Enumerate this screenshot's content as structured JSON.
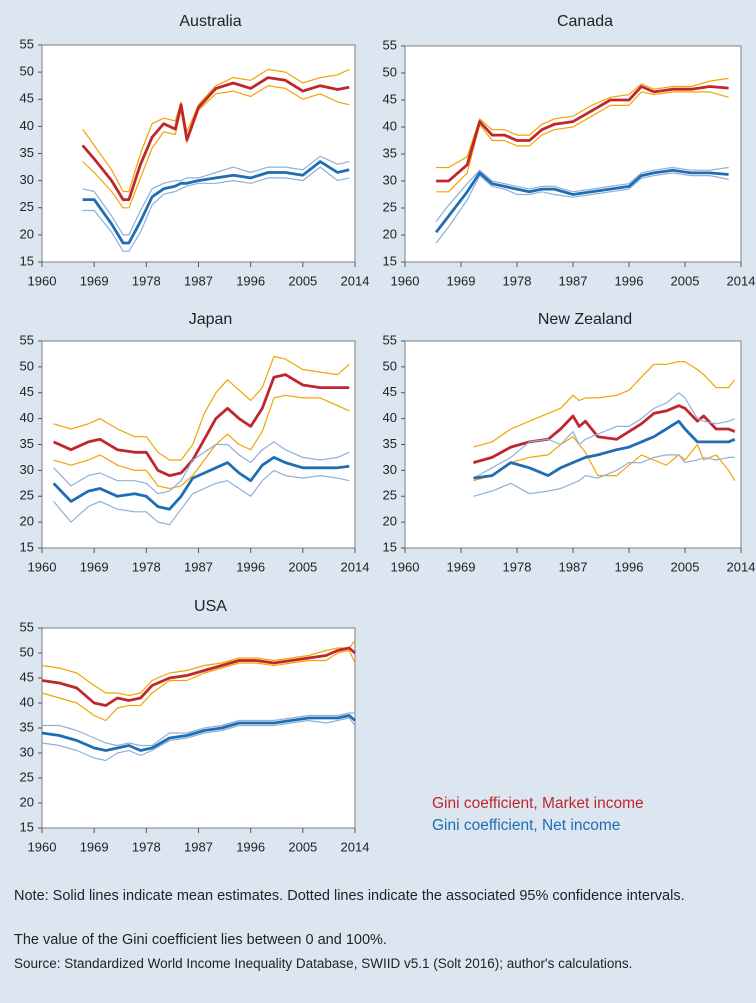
{
  "chart_data": [
    {
      "type": "line",
      "title": "Australia",
      "x": [
        1967,
        1969,
        1972,
        1974,
        1975,
        1977,
        1979,
        1981,
        1983,
        1984,
        1985,
        1987,
        1990,
        1993,
        1996,
        1999,
        2002,
        2005,
        2008,
        2011,
        2013
      ],
      "series": [
        {
          "color": "#f0a500",
          "width": 1.2,
          "values": [
            39.5,
            36.5,
            32,
            28,
            28,
            35,
            40.5,
            41.5,
            41,
            44.5,
            39,
            44,
            47.5,
            49,
            48.5,
            50.5,
            50,
            48,
            49,
            49.5,
            50.5
          ]
        },
        {
          "color": "#f0a500",
          "width": 1.2,
          "values": [
            33.5,
            31.5,
            28,
            25,
            25,
            30.5,
            36,
            39,
            38.5,
            43,
            37,
            43,
            46,
            46.5,
            45.5,
            47.5,
            47,
            45,
            46,
            44.5,
            44
          ]
        },
        {
          "color": "#c0262d",
          "width": 2.8,
          "values": [
            36.5,
            34,
            30,
            26.5,
            26.5,
            33,
            38,
            40.5,
            39.5,
            44,
            37.5,
            43.5,
            47,
            48,
            47,
            49,
            48.5,
            46.5,
            47.5,
            46.8,
            47.2
          ]
        },
        {
          "color": "#8fb0d8",
          "width": 1.2,
          "values": [
            28.5,
            28,
            23.5,
            20,
            20,
            24.5,
            28.5,
            29.5,
            30,
            30,
            30.5,
            30.5,
            31.5,
            32.5,
            31.5,
            32.5,
            32.5,
            32,
            34.5,
            33,
            33.5
          ]
        },
        {
          "color": "#8fb0d8",
          "width": 1.2,
          "values": [
            24.5,
            24.5,
            20.5,
            17,
            17,
            20.5,
            25.5,
            27.5,
            28,
            28.5,
            29,
            29.5,
            29.5,
            30,
            29.5,
            30.5,
            30.5,
            30,
            32.5,
            30,
            30.5
          ]
        },
        {
          "color": "#1f6db3",
          "width": 2.8,
          "values": [
            26.5,
            26.5,
            22,
            18.5,
            18.5,
            22.5,
            27,
            28.5,
            29,
            29.5,
            29.5,
            30,
            30.5,
            31,
            30.5,
            31.5,
            31.5,
            31,
            33.5,
            31.5,
            32
          ]
        }
      ],
      "xlim": [
        1960,
        2014
      ],
      "xticks": [
        1960,
        1969,
        1978,
        1987,
        1996,
        2005,
        2014
      ],
      "ylim": [
        15,
        55
      ],
      "yticks": [
        15,
        20,
        25,
        30,
        35,
        40,
        45,
        50,
        55
      ]
    },
    {
      "type": "line",
      "title": "Canada",
      "x": [
        1965,
        1967,
        1970,
        1972,
        1974,
        1976,
        1978,
        1980,
        1982,
        1984,
        1987,
        1990,
        1993,
        1996,
        1998,
        2000,
        2003,
        2006,
        2009,
        2012
      ],
      "series": [
        {
          "color": "#f0a500",
          "width": 1.2,
          "values": [
            32.5,
            32.5,
            34.5,
            41.5,
            39.5,
            39.5,
            38.5,
            38.5,
            40.5,
            41.5,
            42,
            44,
            45.5,
            46,
            48,
            47,
            47.5,
            47.5,
            48.5,
            49
          ]
        },
        {
          "color": "#f0a500",
          "width": 1.2,
          "values": [
            28,
            28,
            31.5,
            40.5,
            37.5,
            37.5,
            36.5,
            36.5,
            38.5,
            39.5,
            40,
            42,
            44,
            44,
            46.5,
            46,
            46.5,
            46.5,
            46.5,
            45.5
          ]
        },
        {
          "color": "#c0262d",
          "width": 2.8,
          "values": [
            30,
            30,
            33,
            41,
            38.5,
            38.5,
            37.5,
            37.5,
            39.5,
            40.5,
            41,
            43,
            45,
            45,
            47.5,
            46.5,
            47,
            47,
            47.5,
            47.2
          ]
        },
        {
          "color": "#8fb0d8",
          "width": 1.2,
          "values": [
            22.5,
            25.5,
            29.5,
            32,
            30,
            29.5,
            29,
            28.5,
            29,
            29,
            28,
            28.5,
            29,
            29.5,
            31.5,
            32,
            32.5,
            32,
            32,
            32.5
          ]
        },
        {
          "color": "#8fb0d8",
          "width": 1.2,
          "values": [
            18.5,
            21.5,
            26.5,
            31,
            29,
            28.5,
            27.5,
            27.5,
            28,
            27.5,
            27,
            27.5,
            28,
            28.5,
            30.5,
            31,
            31.5,
            31,
            31,
            30.3
          ]
        },
        {
          "color": "#1f6db3",
          "width": 2.8,
          "values": [
            20.5,
            23.5,
            28,
            31.5,
            29.5,
            29,
            28.5,
            28,
            28.5,
            28.5,
            27.5,
            28,
            28.5,
            29,
            31,
            31.5,
            32,
            31.5,
            31.5,
            31.2
          ]
        }
      ],
      "xlim": [
        1960,
        2014
      ],
      "xticks": [
        1960,
        1969,
        1978,
        1987,
        1996,
        2005,
        2014
      ],
      "ylim": [
        15,
        55
      ],
      "yticks": [
        15,
        20,
        25,
        30,
        35,
        40,
        45,
        50,
        55
      ]
    },
    {
      "type": "line",
      "title": "Japan",
      "x": [
        1962,
        1965,
        1968,
        1970,
        1973,
        1976,
        1978,
        1980,
        1982,
        1984,
        1986,
        1988,
        1990,
        1992,
        1994,
        1996,
        1998,
        2000,
        2002,
        2005,
        2008,
        2011,
        2013
      ],
      "series": [
        {
          "color": "#f0a500",
          "width": 1.2,
          "values": [
            39,
            38,
            39,
            40,
            38,
            36.5,
            36.5,
            33.5,
            32,
            32,
            35,
            41,
            45,
            47.5,
            45.5,
            43.5,
            46,
            52,
            51.5,
            49.5,
            49,
            48.5,
            50.5
          ]
        },
        {
          "color": "#f0a500",
          "width": 1.2,
          "values": [
            32,
            31,
            32,
            33,
            31,
            30,
            30,
            27,
            26.5,
            27,
            29,
            32,
            35,
            37,
            35,
            34,
            37.5,
            44,
            44.5,
            44,
            44,
            42.5,
            41.5
          ]
        },
        {
          "color": "#c0262d",
          "width": 2.8,
          "values": [
            35.5,
            34,
            35.5,
            36,
            34,
            33.5,
            33.5,
            30,
            29,
            29.5,
            32,
            36,
            40,
            42,
            40,
            38.5,
            42,
            48,
            48.5,
            46.5,
            46,
            46,
            46
          ]
        },
        {
          "color": "#8fb0d8",
          "width": 1.2,
          "values": [
            30.5,
            27,
            29,
            29.5,
            28,
            28,
            27.5,
            25.5,
            26,
            28,
            32,
            33.5,
            35,
            35,
            33,
            31.5,
            34,
            35.5,
            34,
            32.5,
            32,
            32.5,
            33.5
          ]
        },
        {
          "color": "#8fb0d8",
          "width": 1.2,
          "values": [
            24,
            20,
            23,
            24,
            22.5,
            22,
            22,
            20,
            19.5,
            22.5,
            25.5,
            26.5,
            27.5,
            28,
            26.5,
            25,
            28,
            30,
            29,
            28.5,
            29,
            28.5,
            28
          ]
        },
        {
          "color": "#1f6db3",
          "width": 2.8,
          "values": [
            27.5,
            24,
            26,
            26.5,
            25,
            25.5,
            25,
            23,
            22.5,
            25,
            28.5,
            29.5,
            30.5,
            31.5,
            29.5,
            28,
            31,
            32.5,
            31.5,
            30.5,
            30.5,
            30.5,
            30.8
          ]
        }
      ],
      "xlim": [
        1960,
        2014
      ],
      "xticks": [
        1960,
        1969,
        1978,
        1987,
        1996,
        2005,
        2014
      ],
      "ylim": [
        15,
        55
      ],
      "yticks": [
        15,
        20,
        25,
        30,
        35,
        40,
        45,
        50,
        55
      ]
    },
    {
      "type": "line",
      "title": "New Zealand",
      "x": [
        1971,
        1974,
        1977,
        1980,
        1983,
        1985,
        1987,
        1988,
        1989,
        1991,
        1994,
        1996,
        1998,
        2000,
        2002,
        2004,
        2005,
        2007,
        2008,
        2010,
        2012,
        2013
      ],
      "series": [
        {
          "color": "#f0a500",
          "width": 1.2,
          "values": [
            34.5,
            35.5,
            38,
            39.5,
            41,
            42,
            44.5,
            43.5,
            44,
            44,
            44.5,
            45.5,
            48,
            50.5,
            50.5,
            51,
            51,
            49.5,
            48.5,
            46,
            46,
            47.5
          ]
        },
        {
          "color": "#f0a500",
          "width": 1.2,
          "values": [
            28,
            29,
            31.5,
            32.5,
            33,
            35,
            36.5,
            35,
            33.5,
            29,
            29,
            31,
            33,
            32,
            31,
            33,
            32,
            35,
            32,
            33,
            30,
            28
          ]
        },
        {
          "color": "#c0262d",
          "width": 2.8,
          "values": [
            31.5,
            32.5,
            34.5,
            35.5,
            36,
            38,
            40.5,
            38.5,
            39.5,
            36.5,
            36,
            37.5,
            39,
            41,
            41.5,
            42.5,
            42,
            39.5,
            40.5,
            38,
            38,
            37.5
          ]
        },
        {
          "color": "#8fb0d8",
          "width": 1.2,
          "values": [
            28.5,
            30.5,
            32.5,
            35.5,
            36,
            35,
            37.5,
            35,
            36,
            37,
            38.5,
            38.5,
            40,
            42,
            43,
            45,
            44,
            40,
            39.5,
            39,
            39.5,
            40
          ]
        },
        {
          "color": "#8fb0d8",
          "width": 1.2,
          "values": [
            25,
            26,
            27.5,
            25.5,
            26,
            26.5,
            27.5,
            28,
            29,
            28.5,
            30,
            31.5,
            31.5,
            32.5,
            33,
            33,
            31.5,
            32,
            32.5,
            32,
            32.5,
            32.5
          ]
        },
        {
          "color": "#1f6db3",
          "width": 2.8,
          "values": [
            28.5,
            29,
            31.5,
            30.5,
            29,
            30.5,
            31.5,
            32,
            32.5,
            33,
            34,
            34.5,
            35.5,
            36.5,
            38,
            39.5,
            38,
            35.5,
            35.5,
            35.5,
            35.5,
            36
          ]
        }
      ],
      "xlim": [
        1960,
        2014
      ],
      "xticks": [
        1960,
        1969,
        1978,
        1987,
        1996,
        2005,
        2014
      ],
      "ylim": [
        15,
        55
      ],
      "yticks": [
        15,
        20,
        25,
        30,
        35,
        40,
        45,
        50,
        55
      ]
    },
    {
      "type": "line",
      "title": "USA",
      "x": [
        1960,
        1963,
        1966,
        1969,
        1971,
        1973,
        1975,
        1977,
        1979,
        1982,
        1985,
        1988,
        1991,
        1994,
        1997,
        2000,
        2003,
        2006,
        2009,
        2011,
        2013,
        2014
      ],
      "series": [
        {
          "color": "#f0a500",
          "width": 1.2,
          "values": [
            47.5,
            47,
            46,
            43.5,
            42,
            42,
            41.5,
            42,
            44.5,
            46,
            46.5,
            47.5,
            48,
            49,
            49,
            48.5,
            49,
            49.5,
            50.5,
            51,
            51,
            52.5
          ]
        },
        {
          "color": "#f0a500",
          "width": 1.2,
          "values": [
            42,
            41,
            40,
            37.5,
            36.5,
            39,
            39.5,
            39.5,
            42,
            44.5,
            44.5,
            46,
            47,
            48,
            48,
            47.5,
            48,
            48.5,
            48.5,
            50,
            50.5,
            48
          ]
        },
        {
          "color": "#c0262d",
          "width": 2.8,
          "values": [
            44.5,
            44,
            43,
            40,
            39.5,
            41,
            40.5,
            41,
            43.5,
            45,
            45.5,
            46.5,
            47.5,
            48.5,
            48.5,
            48,
            48.5,
            49,
            49.5,
            50.5,
            51,
            50
          ]
        },
        {
          "color": "#8fb0d8",
          "width": 1.2,
          "values": [
            35.5,
            35.5,
            34.5,
            33,
            32,
            31.5,
            32,
            31.5,
            31.5,
            34,
            34,
            35,
            35.5,
            36.5,
            36.5,
            36.5,
            37,
            37.5,
            37.5,
            37.5,
            38,
            38
          ]
        },
        {
          "color": "#8fb0d8",
          "width": 1.2,
          "values": [
            32,
            31.5,
            30.5,
            29,
            28.5,
            30,
            30.5,
            29.5,
            30.5,
            32.5,
            33,
            34,
            34.5,
            35.5,
            35.5,
            35.5,
            36,
            36.5,
            36,
            36.5,
            37,
            35.5
          ]
        },
        {
          "color": "#1f6db3",
          "width": 2.8,
          "values": [
            34,
            33.5,
            32.5,
            31,
            30.5,
            31,
            31.5,
            30.5,
            31,
            33,
            33.5,
            34.5,
            35,
            36,
            36,
            36,
            36.5,
            37,
            37,
            37,
            37.5,
            36.5
          ]
        }
      ],
      "xlim": [
        1960,
        2014
      ],
      "xticks": [
        1960,
        1969,
        1978,
        1987,
        1996,
        2005,
        2014
      ],
      "ylim": [
        15,
        55
      ],
      "yticks": [
        15,
        20,
        25,
        30,
        35,
        40,
        45,
        50,
        55
      ]
    }
  ],
  "legend": [
    {
      "name": "Gini coefficient, Market income",
      "color": "#c0262d"
    },
    {
      "name": "Gini coefficient, Net income",
      "color": "#1f6db3"
    }
  ],
  "notes": [
    "Note: Solid lines indicate mean estimates. Dotted lines indicate the associated 95% confidence intervals.",
    "The value of the Gini coefficient lies between 0 and 100%.",
    "Source: Standardized World Income Inequality Database, SWIID v5.1 (Solt 2016); author's calculations."
  ]
}
